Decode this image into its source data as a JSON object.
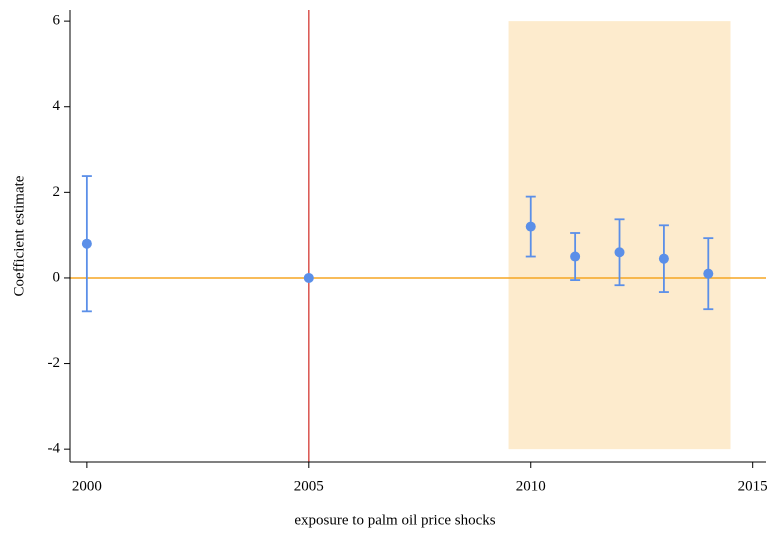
{
  "chart_data": {
    "type": "scatter",
    "xlabel": "exposure to palm oil price shocks",
    "ylabel": "Coefficient estimate",
    "x": [
      2000,
      2005,
      2010,
      2011,
      2012,
      2013,
      2014
    ],
    "values": [
      0.8,
      0,
      1.2,
      0.5,
      0.6,
      0.45,
      0.1
    ],
    "errors": [
      1.58,
      null,
      0.7,
      0.55,
      0.77,
      0.78,
      0.83
    ],
    "color": "#5b8fe8",
    "xlim": [
      1999.62,
      2015.3
    ],
    "ylim": [
      -4.3,
      6.26
    ],
    "xticks": [
      2000,
      2005,
      2010,
      2015
    ],
    "yticks": [
      -4,
      -2,
      0,
      2,
      4,
      6
    ],
    "vline": {
      "x": 2005,
      "color": "#d9544f"
    },
    "hline": {
      "y": 0,
      "color": "#f5a623"
    },
    "shade": {
      "x": [
        2009.5,
        2014.5
      ],
      "y": [
        -4,
        6
      ],
      "color": "#fdebcd"
    }
  }
}
